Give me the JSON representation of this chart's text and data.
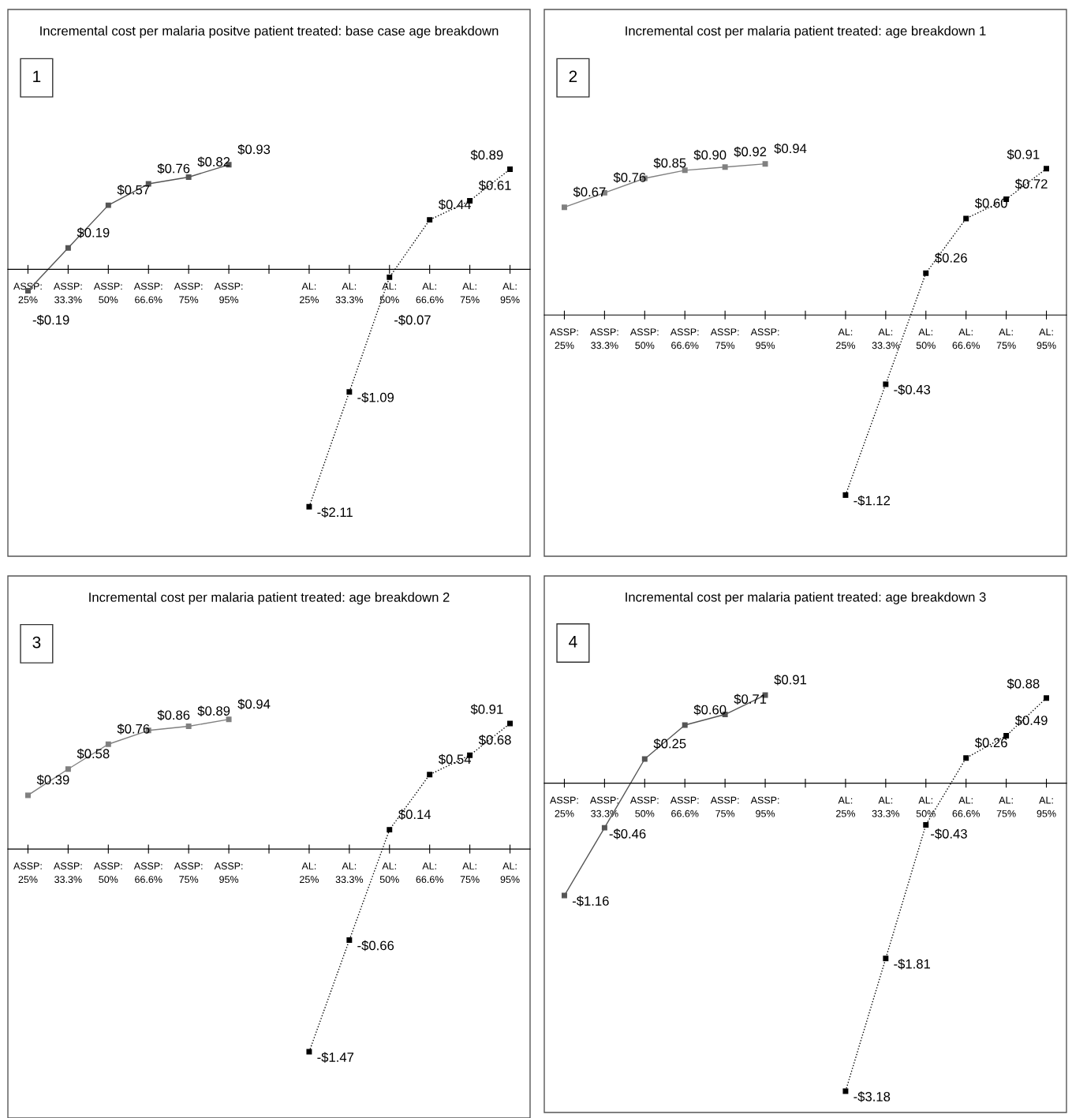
{
  "chart_data": [
    {
      "type": "line",
      "title": "Incremental cost per malaria positve patient treated: base case age breakdown",
      "annotations": [
        "1"
      ],
      "marker": "square",
      "tick_labels": "x",
      "ylim": [
        -2.55,
        2.31
      ],
      "categories": [
        "ASSP: 25%",
        "ASSP: 33.3%",
        "ASSP: 50%",
        "ASSP: 66.6%",
        "ASSP: 75%",
        "ASSP: 95%",
        null,
        "AL: 25%",
        "AL: 33.3%",
        "AL: 50%",
        "AL: 66.6%",
        "AL: 75%",
        "AL: 95%"
      ],
      "series": [
        {
          "color": "#555555",
          "line_style": "solid",
          "values": [
            -0.19,
            0.19,
            0.57,
            0.76,
            0.82,
            0.93,
            null,
            null,
            null,
            null,
            null,
            null,
            null
          ],
          "value_labels": [
            "-$0.19",
            "$0.19",
            "$0.57",
            "$0.76",
            "$0.82",
            "$0.93",
            null,
            null,
            null,
            null,
            null,
            null,
            null
          ]
        },
        {
          "color": "#000000",
          "line_style": "dotted",
          "values": [
            null,
            null,
            null,
            null,
            null,
            null,
            null,
            -2.11,
            -1.09,
            -0.07,
            0.44,
            0.61,
            0.89
          ],
          "value_labels": [
            null,
            null,
            null,
            null,
            null,
            null,
            null,
            "-$2.11",
            "-$1.09",
            "-$0.07",
            "$0.44",
            "$0.61",
            "$0.89"
          ]
        }
      ]
    },
    {
      "type": "line",
      "title": "Incremental cost per malaria patient treated: age breakdown 1",
      "annotations": [
        "2"
      ],
      "marker": "square",
      "tick_labels": "x",
      "ylim": [
        -1.5,
        1.9
      ],
      "categories": [
        "ASSP: 25%",
        "ASSP: 33.3%",
        "ASSP: 50%",
        "ASSP: 66.6%",
        "ASSP: 75%",
        "ASSP: 95%",
        null,
        "AL: 25%",
        "AL: 33.3%",
        "AL: 50%",
        "AL: 66.6%",
        "AL: 75%",
        "AL: 95%"
      ],
      "series": [
        {
          "color": "#808080",
          "line_style": "solid",
          "values": [
            0.67,
            0.76,
            0.85,
            0.9,
            0.92,
            0.94,
            null,
            null,
            null,
            null,
            null,
            null,
            null
          ],
          "value_labels": [
            "$0.67",
            "$0.76",
            "$0.85",
            "$0.90",
            "$0.92",
            "$0.94",
            null,
            null,
            null,
            null,
            null,
            null,
            null
          ]
        },
        {
          "color": "#000000",
          "line_style": "dotted",
          "values": [
            null,
            null,
            null,
            null,
            null,
            null,
            null,
            -1.12,
            -0.43,
            0.26,
            0.6,
            0.72,
            0.91
          ],
          "value_labels": [
            null,
            null,
            null,
            null,
            null,
            null,
            null,
            "-$1.12",
            "-$0.43",
            "$0.26",
            "$0.60",
            "$0.72",
            "$0.91"
          ]
        }
      ]
    },
    {
      "type": "line",
      "title": "Incremental cost per malaria patient treated: age breakdown 2",
      "annotations": [
        "3"
      ],
      "marker": "square",
      "tick_labels": "x",
      "ylim": [
        -1.95,
        1.98
      ],
      "categories": [
        "ASSP: 25%",
        "ASSP: 33.3%",
        "ASSP: 50%",
        "ASSP: 66.6%",
        "ASSP: 75%",
        "ASSP: 95%",
        null,
        "AL: 25%",
        "AL: 33.3%",
        "AL: 50%",
        "AL: 66.6%",
        "AL: 75%",
        "AL: 95%"
      ],
      "series": [
        {
          "color": "#808080",
          "line_style": "solid",
          "values": [
            0.39,
            0.58,
            0.76,
            0.86,
            0.89,
            0.94,
            null,
            null,
            null,
            null,
            null,
            null,
            null
          ],
          "value_labels": [
            "$0.39",
            "$0.58",
            "$0.76",
            "$0.86",
            "$0.89",
            "$0.94",
            null,
            null,
            null,
            null,
            null,
            null,
            null
          ]
        },
        {
          "color": "#000000",
          "line_style": "dotted",
          "values": [
            null,
            null,
            null,
            null,
            null,
            null,
            null,
            -1.47,
            -0.66,
            0.14,
            0.54,
            0.68,
            0.91
          ],
          "value_labels": [
            null,
            null,
            null,
            null,
            null,
            null,
            null,
            "-$1.47",
            "-$0.66",
            "$0.14",
            "$0.54",
            "$0.68",
            "$0.91"
          ]
        }
      ]
    },
    {
      "type": "line",
      "title": "Incremental cost per malaria patient treated: age breakdown 3",
      "annotations": [
        "4"
      ],
      "marker": "square",
      "tick_labels": "x",
      "ylim": [
        -3.4,
        2.14
      ],
      "categories": [
        "ASSP: 25%",
        "ASSP: 33.3%",
        "ASSP: 50%",
        "ASSP: 66.6%",
        "ASSP: 75%",
        "ASSP: 95%",
        null,
        "AL: 25%",
        "AL: 33.3%",
        "AL: 50%",
        "AL: 66.6%",
        "AL: 75%",
        "AL: 95%"
      ],
      "series": [
        {
          "color": "#555555",
          "line_style": "solid",
          "values": [
            -1.16,
            -0.46,
            0.25,
            0.6,
            0.71,
            0.91,
            null,
            null,
            null,
            null,
            null,
            null,
            null
          ],
          "value_labels": [
            "-$1.16",
            "-$0.46",
            "$0.25",
            "$0.60",
            "$0.71",
            "$0.91",
            null,
            null,
            null,
            null,
            null,
            null,
            null
          ]
        },
        {
          "color": "#000000",
          "line_style": "dotted",
          "values": [
            null,
            null,
            null,
            null,
            null,
            null,
            null,
            -3.18,
            -1.81,
            -0.43,
            0.26,
            0.49,
            0.88
          ],
          "value_labels": [
            null,
            null,
            null,
            null,
            null,
            null,
            null,
            "-$3.18",
            "-$1.81",
            "-$0.43",
            "$0.26",
            "$0.49",
            "$0.88"
          ]
        }
      ]
    }
  ]
}
